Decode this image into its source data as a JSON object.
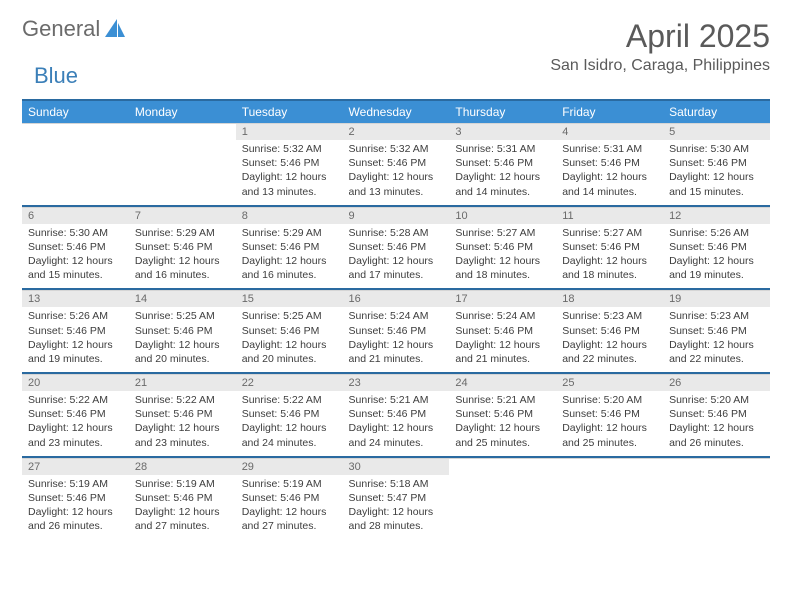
{
  "brand": {
    "part1": "General",
    "part2": "Blue"
  },
  "title": "April 2025",
  "location": "San Isidro, Caraga, Philippines",
  "colors": {
    "header_bg": "#3b8fd4",
    "header_border": "#2a6aa0",
    "daynum_bg": "#e9e9e9",
    "text": "#3d3d3d"
  },
  "weekday_labels": [
    "Sunday",
    "Monday",
    "Tuesday",
    "Wednesday",
    "Thursday",
    "Friday",
    "Saturday"
  ],
  "weeks": [
    [
      null,
      null,
      {
        "n": "1",
        "sunrise": "5:32 AM",
        "sunset": "5:46 PM",
        "day_h": "12",
        "day_m": "13"
      },
      {
        "n": "2",
        "sunrise": "5:32 AM",
        "sunset": "5:46 PM",
        "day_h": "12",
        "day_m": "13"
      },
      {
        "n": "3",
        "sunrise": "5:31 AM",
        "sunset": "5:46 PM",
        "day_h": "12",
        "day_m": "14"
      },
      {
        "n": "4",
        "sunrise": "5:31 AM",
        "sunset": "5:46 PM",
        "day_h": "12",
        "day_m": "14"
      },
      {
        "n": "5",
        "sunrise": "5:30 AM",
        "sunset": "5:46 PM",
        "day_h": "12",
        "day_m": "15"
      }
    ],
    [
      {
        "n": "6",
        "sunrise": "5:30 AM",
        "sunset": "5:46 PM",
        "day_h": "12",
        "day_m": "15"
      },
      {
        "n": "7",
        "sunrise": "5:29 AM",
        "sunset": "5:46 PM",
        "day_h": "12",
        "day_m": "16"
      },
      {
        "n": "8",
        "sunrise": "5:29 AM",
        "sunset": "5:46 PM",
        "day_h": "12",
        "day_m": "16"
      },
      {
        "n": "9",
        "sunrise": "5:28 AM",
        "sunset": "5:46 PM",
        "day_h": "12",
        "day_m": "17"
      },
      {
        "n": "10",
        "sunrise": "5:27 AM",
        "sunset": "5:46 PM",
        "day_h": "12",
        "day_m": "18"
      },
      {
        "n": "11",
        "sunrise": "5:27 AM",
        "sunset": "5:46 PM",
        "day_h": "12",
        "day_m": "18"
      },
      {
        "n": "12",
        "sunrise": "5:26 AM",
        "sunset": "5:46 PM",
        "day_h": "12",
        "day_m": "19"
      }
    ],
    [
      {
        "n": "13",
        "sunrise": "5:26 AM",
        "sunset": "5:46 PM",
        "day_h": "12",
        "day_m": "19"
      },
      {
        "n": "14",
        "sunrise": "5:25 AM",
        "sunset": "5:46 PM",
        "day_h": "12",
        "day_m": "20"
      },
      {
        "n": "15",
        "sunrise": "5:25 AM",
        "sunset": "5:46 PM",
        "day_h": "12",
        "day_m": "20"
      },
      {
        "n": "16",
        "sunrise": "5:24 AM",
        "sunset": "5:46 PM",
        "day_h": "12",
        "day_m": "21"
      },
      {
        "n": "17",
        "sunrise": "5:24 AM",
        "sunset": "5:46 PM",
        "day_h": "12",
        "day_m": "21"
      },
      {
        "n": "18",
        "sunrise": "5:23 AM",
        "sunset": "5:46 PM",
        "day_h": "12",
        "day_m": "22"
      },
      {
        "n": "19",
        "sunrise": "5:23 AM",
        "sunset": "5:46 PM",
        "day_h": "12",
        "day_m": "22"
      }
    ],
    [
      {
        "n": "20",
        "sunrise": "5:22 AM",
        "sunset": "5:46 PM",
        "day_h": "12",
        "day_m": "23"
      },
      {
        "n": "21",
        "sunrise": "5:22 AM",
        "sunset": "5:46 PM",
        "day_h": "12",
        "day_m": "23"
      },
      {
        "n": "22",
        "sunrise": "5:22 AM",
        "sunset": "5:46 PM",
        "day_h": "12",
        "day_m": "24"
      },
      {
        "n": "23",
        "sunrise": "5:21 AM",
        "sunset": "5:46 PM",
        "day_h": "12",
        "day_m": "24"
      },
      {
        "n": "24",
        "sunrise": "5:21 AM",
        "sunset": "5:46 PM",
        "day_h": "12",
        "day_m": "25"
      },
      {
        "n": "25",
        "sunrise": "5:20 AM",
        "sunset": "5:46 PM",
        "day_h": "12",
        "day_m": "25"
      },
      {
        "n": "26",
        "sunrise": "5:20 AM",
        "sunset": "5:46 PM",
        "day_h": "12",
        "day_m": "26"
      }
    ],
    [
      {
        "n": "27",
        "sunrise": "5:19 AM",
        "sunset": "5:46 PM",
        "day_h": "12",
        "day_m": "26"
      },
      {
        "n": "28",
        "sunrise": "5:19 AM",
        "sunset": "5:46 PM",
        "day_h": "12",
        "day_m": "27"
      },
      {
        "n": "29",
        "sunrise": "5:19 AM",
        "sunset": "5:46 PM",
        "day_h": "12",
        "day_m": "27"
      },
      {
        "n": "30",
        "sunrise": "5:18 AM",
        "sunset": "5:47 PM",
        "day_h": "12",
        "day_m": "28"
      },
      null,
      null,
      null
    ]
  ]
}
